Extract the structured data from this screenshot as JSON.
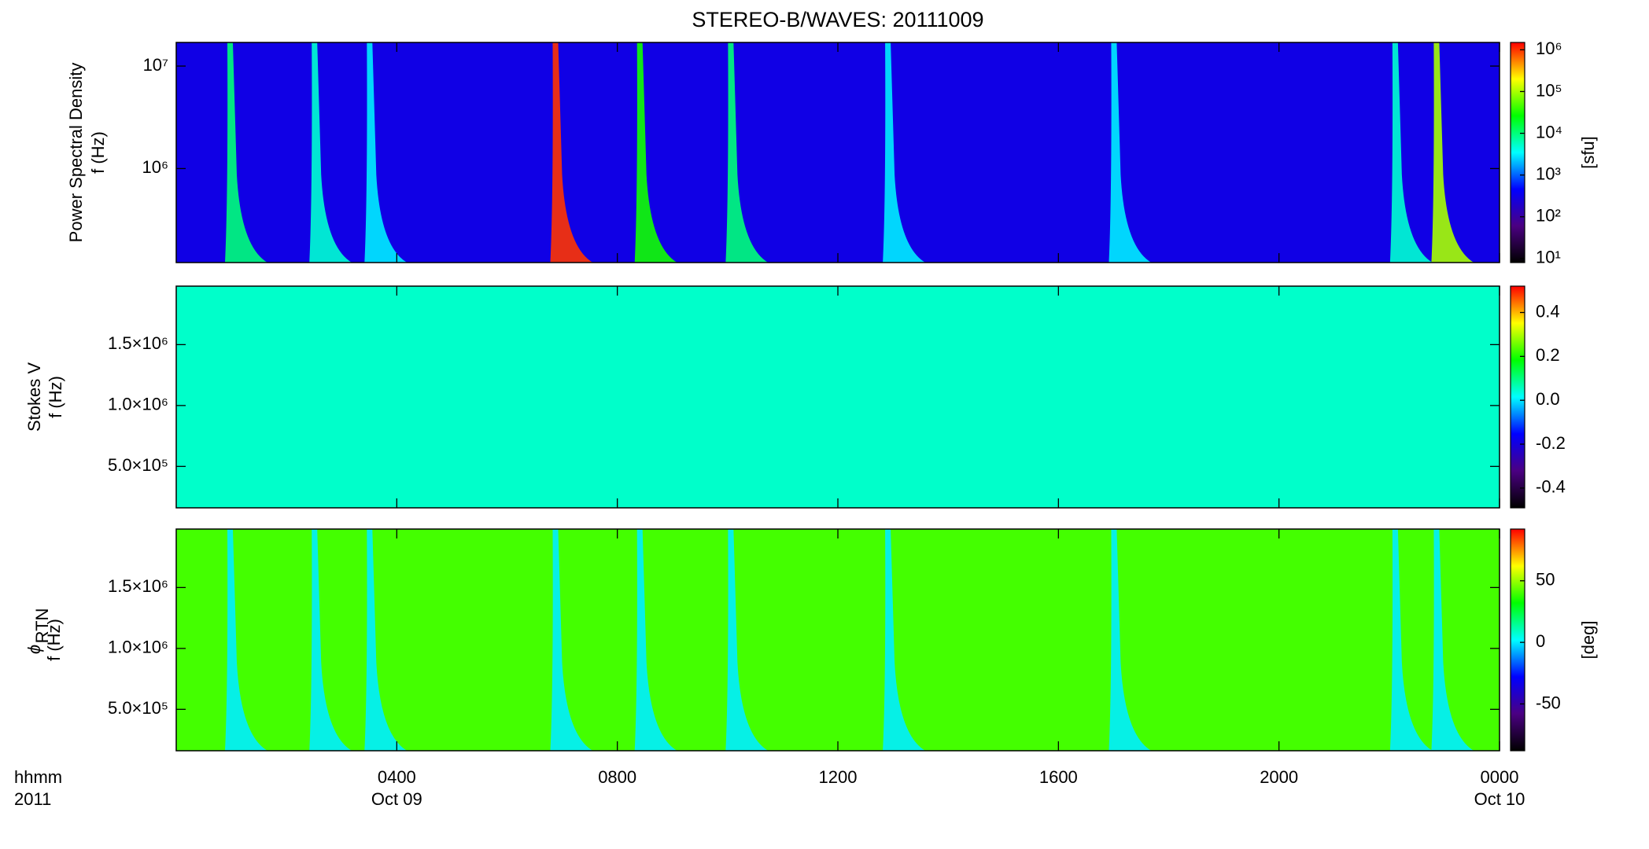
{
  "chart_data": [
    {
      "type": "spectrogram",
      "title": "STEREO-B/WAVES: 20111009",
      "ylabel": [
        "Power Spectral Density",
        "f (Hz)"
      ],
      "ylog": true,
      "ylim": [
        121000,
        17000000
      ],
      "yticks": [
        {
          "value": 1000000,
          "label": "10⁶"
        },
        {
          "value": 10000000,
          "label": "10⁷"
        }
      ],
      "xlim": [
        0,
        24
      ],
      "xticks": [
        4,
        8,
        12,
        16,
        20,
        24
      ],
      "colormap": [
        "#000000",
        "#4b0082",
        "#0000ff",
        "#00ffff",
        "#00ff00",
        "#ffff00",
        "#ff0000"
      ],
      "colorbar": {
        "log": true,
        "clim": [
          8,
          1500000
        ],
        "ticks": [
          {
            "value": 10,
            "label": "10¹"
          },
          {
            "value": 100,
            "label": "10²"
          },
          {
            "value": 1000,
            "label": "10³"
          },
          {
            "value": 10000,
            "label": "10⁴"
          },
          {
            "value": 100000,
            "label": "10⁵"
          },
          {
            "value": 1000000,
            "label": "10⁶"
          }
        ],
        "label": "[sfu]"
      },
      "background": 300,
      "bursts": {
        "x": [
          0.97,
          2.5,
          3.5,
          6.87,
          8.4,
          10.05,
          12.9,
          17.0,
          22.1,
          22.85
        ],
        "values": [
          10000,
          5000,
          3000,
          1000000,
          30000,
          10000,
          3000,
          3000,
          5000,
          100000
        ]
      }
    },
    {
      "type": "spectrogram",
      "ylabel": [
        "Stokes V",
        "f (Hz)"
      ],
      "ylog": false,
      "ylim": [
        160000,
        1980000
      ],
      "yticks": [
        {
          "value": 500000,
          "label": "5.0×10⁵"
        },
        {
          "value": 1000000,
          "label": "1.0×10⁶"
        },
        {
          "value": 1500000,
          "label": "1.5×10⁶"
        }
      ],
      "xlim": [
        0,
        24
      ],
      "xticks": [
        4,
        8,
        12,
        16,
        20,
        24
      ],
      "colormap": [
        "#000000",
        "#4b0082",
        "#0000ff",
        "#00ffff",
        "#00ff00",
        "#ffff00",
        "#ff0000"
      ],
      "colorbar": {
        "log": false,
        "clim": [
          -0.49,
          0.52
        ],
        "ticks": [
          -0.4,
          -0.2,
          {
            "value": 0,
            "label": "0.0"
          },
          0.2,
          0.4
        ]
      },
      "background": 0.05
    },
    {
      "type": "spectrogram",
      "ylabel": [
        "ϕ",
        "f (Hz)"
      ],
      "ylabel_subscript": "RTN",
      "ylog": false,
      "ylim": [
        160000,
        1980000
      ],
      "yticks": [
        {
          "value": 500000,
          "label": "5.0×10⁵"
        },
        {
          "value": 1000000,
          "label": "1.0×10⁶"
        },
        {
          "value": 1500000,
          "label": "1.5×10⁶"
        }
      ],
      "xlim": [
        0,
        24
      ],
      "xticks": [
        {
          "value": 4,
          "label": "0400"
        },
        {
          "value": 8,
          "label": "0800"
        },
        {
          "value": 12,
          "label": "1200"
        },
        {
          "value": 16,
          "label": "1600"
        },
        {
          "value": 20,
          "label": "2000"
        },
        {
          "value": 24,
          "label": "0000"
        }
      ],
      "xdates": [
        {
          "value": 4,
          "label": "Oct 09"
        },
        {
          "value": 24,
          "label": "Oct 10"
        }
      ],
      "xlabel": [
        "hhmm",
        "2011"
      ],
      "colormap": [
        "#000000",
        "#4b0082",
        "#0000ff",
        "#00ffff",
        "#00ff00",
        "#ffff00",
        "#ff0000"
      ],
      "colorbar": {
        "log": false,
        "clim": [
          -88,
          92
        ],
        "ticks": [
          -50,
          0,
          50
        ],
        "label": "[deg]"
      },
      "background": 40,
      "bursts": {
        "x": [
          0.97,
          2.5,
          3.5,
          6.87,
          8.4,
          10.05,
          12.9,
          17.0,
          22.1,
          22.85
        ],
        "values": [
          0,
          0,
          0,
          0,
          0,
          0,
          0,
          0,
          0,
          0
        ]
      }
    }
  ]
}
